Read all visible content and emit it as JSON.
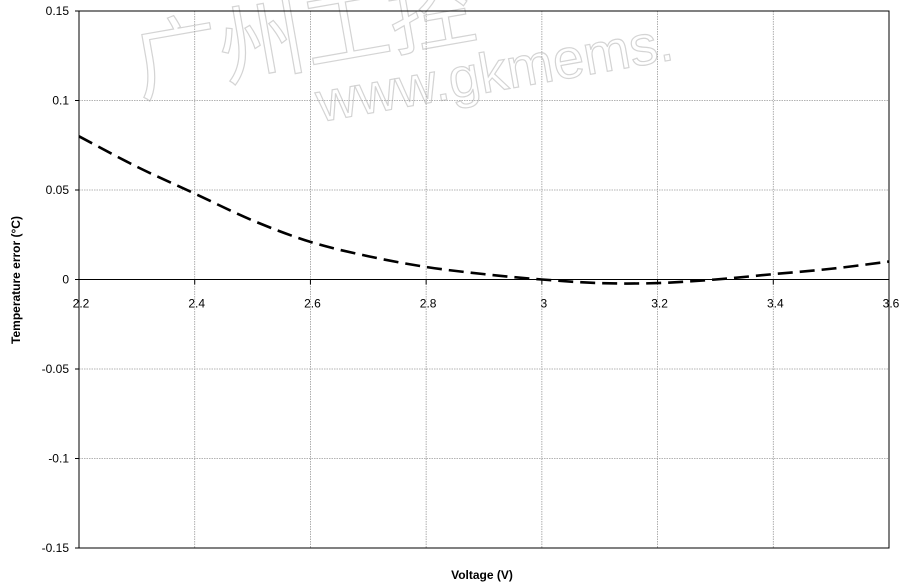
{
  "watermark": {
    "line1": "广州工控",
    "line2": "www.gkmems."
  },
  "chart_data": {
    "type": "line",
    "title": "",
    "xlabel": "Voltage (V)",
    "ylabel": "Temperature error (°C)",
    "xlim": [
      2.2,
      3.6
    ],
    "ylim": [
      -0.15,
      0.15
    ],
    "x_ticks": [
      2.2,
      2.4,
      2.6,
      2.8,
      3.0,
      3.2,
      3.4,
      3.6
    ],
    "x_tick_labels": [
      "2.2",
      "2.4",
      "2.6",
      "2.8",
      "3",
      "3.2",
      "3.4",
      "3.6"
    ],
    "y_ticks": [
      0.15,
      0.1,
      0.05,
      0,
      -0.05,
      -0.1,
      -0.15
    ],
    "y_tick_labels": [
      "0.15",
      "0.1",
      "0.05",
      "0",
      "-0.05",
      "-0.1",
      "-0.15"
    ],
    "grid": true,
    "legend": "none",
    "series": [
      {
        "style": "dashed",
        "color": "#000000",
        "x": [
          2.2,
          2.3,
          2.4,
          2.5,
          2.6,
          2.7,
          2.8,
          2.9,
          3.0,
          3.1,
          3.2,
          3.3,
          3.4,
          3.5,
          3.6
        ],
        "y": [
          0.08,
          0.063,
          0.048,
          0.033,
          0.021,
          0.013,
          0.007,
          0.003,
          0.0,
          -0.002,
          -0.002,
          0.0,
          0.003,
          0.006,
          0.01
        ]
      }
    ]
  }
}
